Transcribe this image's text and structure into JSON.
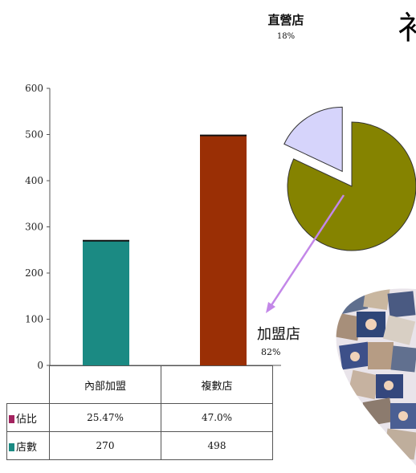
{
  "heading_fragment": "衤",
  "chart_data": [
    {
      "type": "bar",
      "categories": [
        "內部加盟",
        "複數店"
      ],
      "values": [
        270,
        498
      ],
      "ylim": [
        0,
        600
      ],
      "yticks": [
        0,
        100,
        200,
        300,
        400,
        500,
        600
      ],
      "colors": [
        "#1b8a83",
        "#9a2f05"
      ],
      "table": {
        "columns": [
          "內部加盟",
          "複數店"
        ],
        "rows": [
          {
            "label": "佔比",
            "swatch": "#a3235f",
            "values": [
              "25.47%",
              "47.0%"
            ]
          },
          {
            "label": "店數",
            "swatch": "#1b8a83",
            "values": [
              "270",
              "498"
            ]
          }
        ]
      }
    },
    {
      "type": "pie",
      "slices": [
        {
          "label": "直營店",
          "value": 18,
          "value_label": "18%",
          "color": "#d6d4fb"
        },
        {
          "label": "加盟店",
          "value": 82,
          "value_label": "82%",
          "color": "#858300"
        }
      ],
      "exploded": "直營店"
    }
  ]
}
